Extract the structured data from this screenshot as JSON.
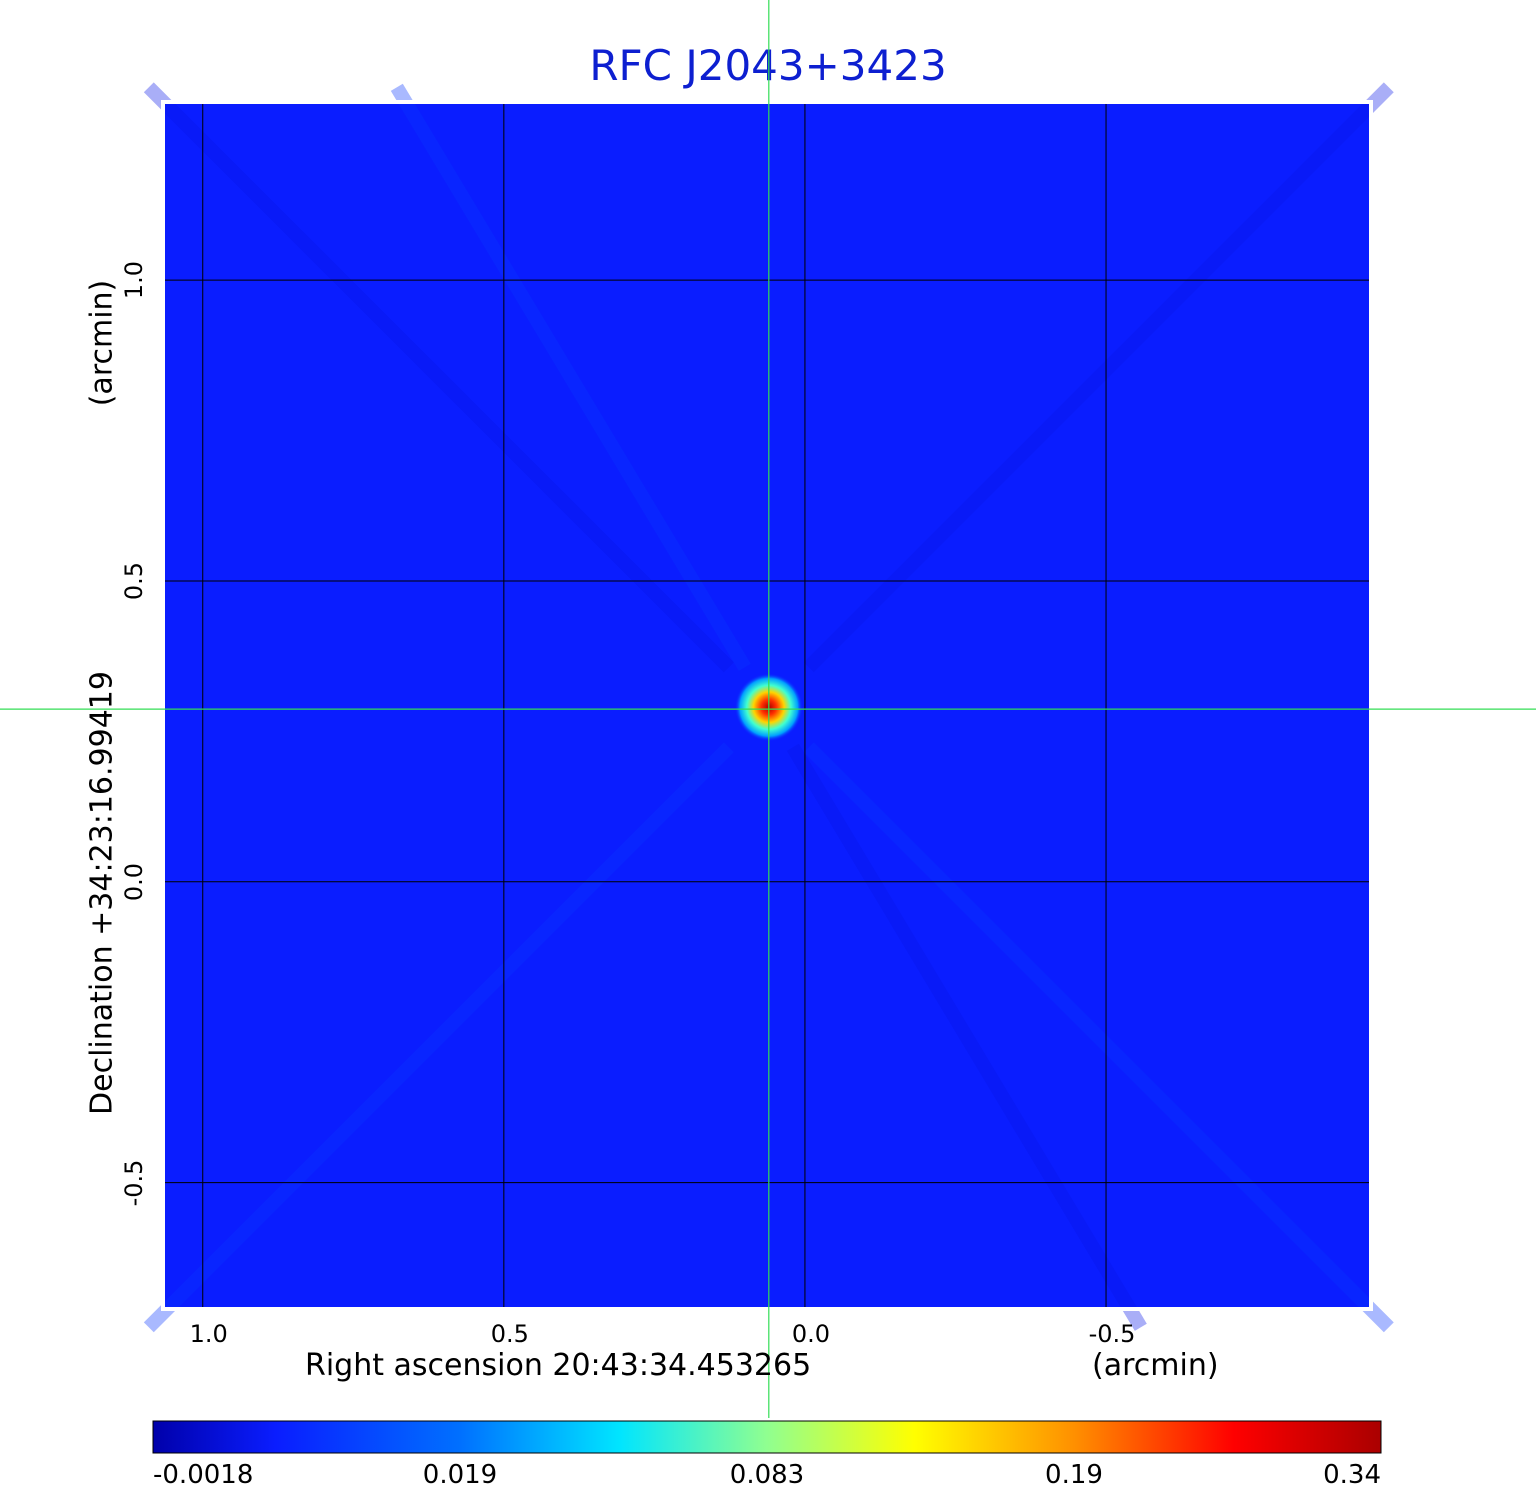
{
  "chart_data": {
    "type": "heatmap",
    "title": "RFC J2043+3423",
    "xlabel": "Right ascension  20:43:34.453265",
    "xunit": "(arcmin)",
    "ylabel": "Declination  +34:23:16.99419",
    "yunit": "(arcmin)",
    "x_ticks": [
      "1.0",
      "0.5",
      "0.0",
      "-0.5"
    ],
    "y_ticks": [
      "1.0",
      "0.5",
      "0.0",
      "-0.5"
    ],
    "x_tick_values": [
      1.0,
      0.5,
      0.0,
      -0.5
    ],
    "y_tick_values": [
      1.0,
      0.5,
      0.0,
      -0.5
    ],
    "xlim": [
      1.066,
      -0.94
    ],
    "ylim": [
      -0.71,
      1.296
    ],
    "grid": true,
    "source": {
      "x": 0.06,
      "y": 0.29,
      "peak": 0.34
    },
    "crosshair": {
      "x": 0.06,
      "y": 0.287
    },
    "colorbar": {
      "ticks": [
        "-0.0018",
        "0.019",
        "0.083",
        "0.19",
        "0.34"
      ],
      "colors": [
        "#0000aa",
        "#0a1dff",
        "#00e5ff",
        "#ffff00",
        "#ff0000",
        "#aa0000"
      ]
    }
  }
}
